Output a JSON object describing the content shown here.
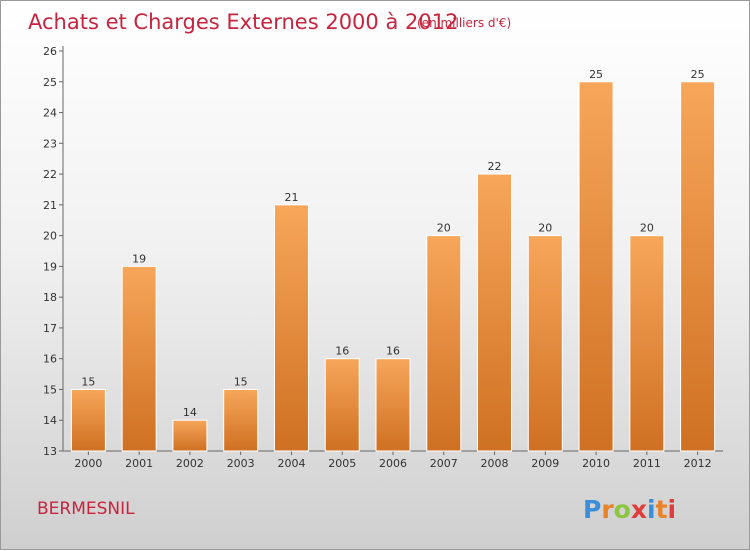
{
  "chart_data": {
    "type": "bar",
    "title": "Achats et Charges Externes 2000 à 2012",
    "subtitle": "(en milliers d'€)",
    "categories": [
      "2000",
      "2001",
      "2002",
      "2003",
      "2004",
      "2005",
      "2006",
      "2007",
      "2008",
      "2009",
      "2010",
      "2011",
      "2012"
    ],
    "values": [
      15,
      19,
      14,
      15,
      21,
      16,
      16,
      20,
      22,
      20,
      25,
      20,
      25
    ],
    "ylim": [
      13,
      26
    ],
    "yticks": [
      13,
      14,
      15,
      16,
      17,
      18,
      19,
      20,
      21,
      22,
      23,
      24,
      25,
      26
    ],
    "grid": false,
    "bar_color": "#f0973f",
    "bar_color_light": "#f7a65a",
    "bar_color_dark": "#cf7022",
    "label_color": "#c8243e"
  },
  "footer": {
    "commune": "BERMESNIL",
    "logo": "Proxiti",
    "logo_colors": [
      "#3a8fd8",
      "#e8832b",
      "#8cc63e",
      "#e23b3b",
      "#3a8fd8",
      "#e8832b",
      "#e23b3b"
    ]
  }
}
